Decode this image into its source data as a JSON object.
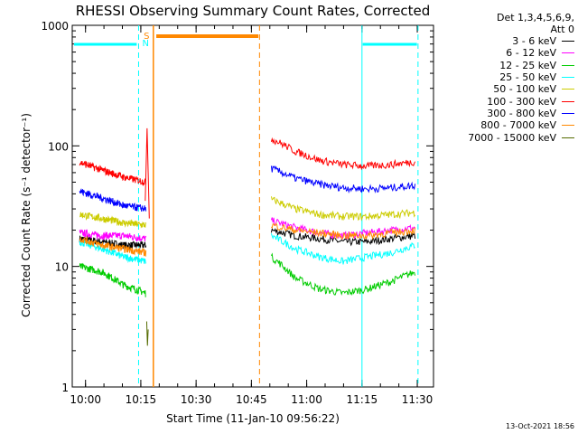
{
  "chart_data": {
    "type": "line",
    "title": "RHESSI Observing Summary Count Rates, Corrected",
    "xlabel": "Start Time (11-Jan-10 09:56:22)",
    "ylabel": "Corrected Count Rate (s⁻¹ detector⁻¹)",
    "y_scale": "log",
    "ylim": [
      1,
      1000
    ],
    "xlim_minutes_after_start": [
      0,
      98
    ],
    "y_ticks": [
      "1",
      "10",
      "100",
      "1000"
    ],
    "x_ticks": [
      {
        "label": "10:00",
        "minutes_after_start": 3.6
      },
      {
        "label": "10:15",
        "minutes_after_start": 18.6
      },
      {
        "label": "10:30",
        "minutes_after_start": 33.6
      },
      {
        "label": "10:45",
        "minutes_after_start": 48.6
      },
      {
        "label": "11:00",
        "minutes_after_start": 63.6
      },
      {
        "label": "11:15",
        "minutes_after_start": 78.6
      },
      {
        "label": "11:30",
        "minutes_after_start": 93.6
      }
    ],
    "legend_header": [
      "Det 1,3,4,5,6,9,",
      "Att 0"
    ],
    "legend_position": "right",
    "series": [
      {
        "name": "3 - 6 keV",
        "color": "#000000",
        "seg1": [
          17,
          16,
          15,
          15
        ],
        "seg2": [
          20,
          18,
          17,
          16,
          16,
          17,
          18
        ]
      },
      {
        "name": "6 - 12 keV",
        "color": "#ff00ff",
        "seg1": [
          19,
          18,
          18,
          17
        ],
        "seg2": [
          24,
          21,
          19,
          18,
          19,
          20,
          21
        ]
      },
      {
        "name": "12 - 25 keV",
        "color": "#00cc00",
        "seg1": [
          10,
          9,
          7,
          6
        ],
        "seg2": [
          12,
          8,
          6.5,
          6,
          6.5,
          7.5,
          9
        ]
      },
      {
        "name": "25 - 50 keV",
        "color": "#00ffff",
        "seg1": [
          16,
          14,
          12,
          11
        ],
        "seg2": [
          18,
          14,
          12,
          11,
          12,
          13,
          15
        ]
      },
      {
        "name": "50 - 100 keV",
        "color": "#cccc00",
        "seg1": [
          27,
          25,
          23,
          22
        ],
        "seg2": [
          36,
          30,
          27,
          26,
          26,
          27,
          28
        ]
      },
      {
        "name": "100 - 300 keV",
        "color": "#ff0000",
        "seg1": [
          73,
          63,
          55,
          50
        ],
        "seg2": [
          115,
          90,
          76,
          70,
          68,
          70,
          74
        ]
      },
      {
        "name": "300 - 800 keV",
        "color": "#0000ff",
        "seg1": [
          42,
          37,
          32,
          30
        ],
        "seg2": [
          65,
          54,
          48,
          45,
          44,
          45,
          47
        ]
      },
      {
        "name": "800 - 7000 keV",
        "color": "#ff8800",
        "seg1": [
          17,
          15,
          14,
          13
        ],
        "seg2": [
          22,
          20,
          19,
          18,
          18,
          19,
          20
        ]
      },
      {
        "name": "7000 - 15000 keV",
        "color": "#556b00",
        "seg1": [],
        "seg2": []
      }
    ],
    "segment1_range_minutes": [
      2,
      20
    ],
    "segment2_range_minutes": [
      54,
      93
    ],
    "annotations": [
      {
        "text": "S",
        "color": "#ff8800"
      },
      {
        "text": "N",
        "color": "#00ffff"
      }
    ]
  },
  "footer_timestamp": "13-Oct-2021 18:56"
}
